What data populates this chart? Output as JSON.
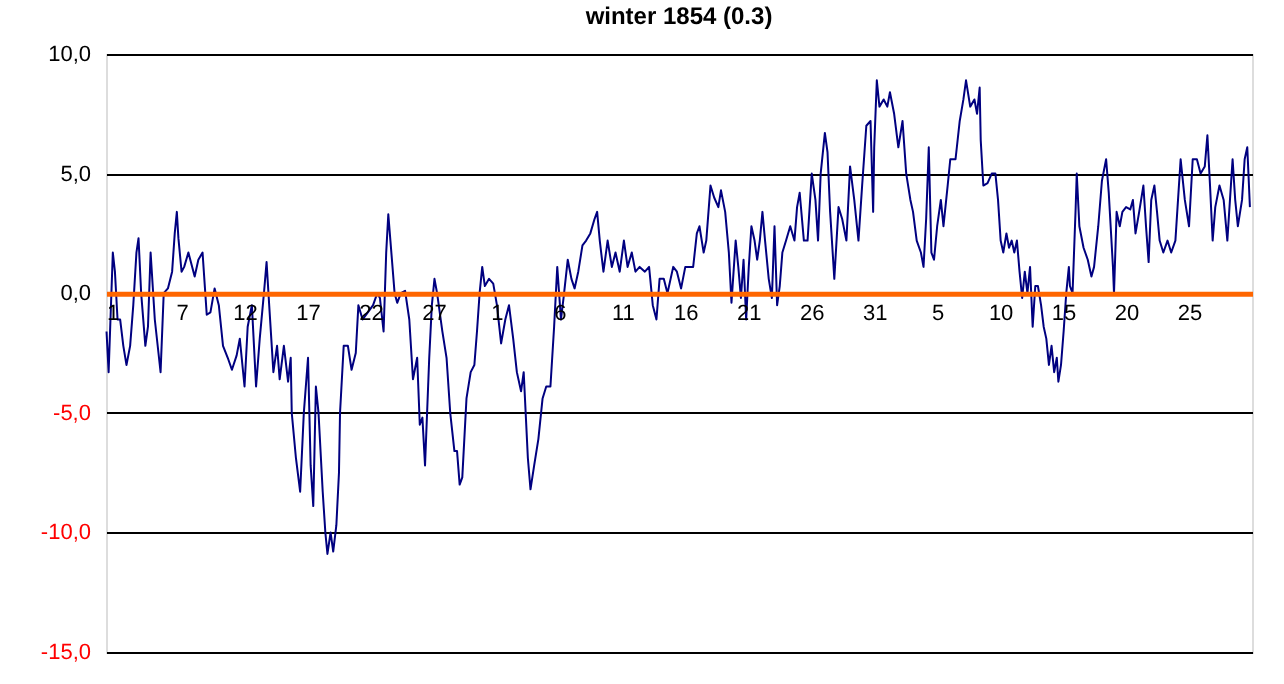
{
  "chart_data": {
    "type": "line",
    "title": "winter 1854 (0.3)",
    "series": [
      {
        "color": "#000080",
        "x": [
          "1853-12-01T01:00",
          "1853-12-01T05:00",
          "1853-12-01T13:00",
          "1853-12-01T17:00",
          "1853-12-01T22:00",
          "1853-12-02T03:00",
          "1853-12-02T09:00",
          "1853-12-02T15:00",
          "1853-12-02T22:00",
          "1853-12-03T04:00",
          "1853-12-03T10:00",
          "1853-12-03T14:00",
          "1853-12-03T19:00",
          "1853-12-04T03:00",
          "1853-12-04T08:00",
          "1853-12-04T13:00",
          "1853-12-04T21:00",
          "1853-12-05T04:00",
          "1853-12-05T08:00",
          "1853-12-05T14:00",
          "1853-12-05T22:00",
          "1853-12-06T06:00",
          "1853-12-06T11:00",
          "1853-12-06T15:00",
          "1853-12-06T18:00",
          "1853-12-07T00:00",
          "1853-12-07T05:00",
          "1853-12-07T13:00",
          "1853-12-08T01:00",
          "1853-12-08T08:00",
          "1853-12-08T16:00",
          "1853-12-09T00:00",
          "1853-12-09T07:00",
          "1853-12-09T15:00",
          "1853-12-09T23:00",
          "1853-12-10T07:00",
          "1853-12-10T16:00",
          "1853-12-11T00:00",
          "1853-12-11T09:00",
          "1853-12-11T15:00",
          "1853-12-12T00:00",
          "1853-12-12T06:00",
          "1853-12-12T14:00",
          "1853-12-12T22:00",
          "1853-12-13T05:00",
          "1853-12-13T13:00",
          "1853-12-13T18:00",
          "1853-12-13T23:00",
          "1853-12-14T07:00",
          "1853-12-14T14:00",
          "1853-12-14T19:00",
          "1853-12-15T03:00",
          "1853-12-15T11:00",
          "1853-12-15T16:00",
          "1853-12-15T18:00",
          "1853-12-16T02:00",
          "1853-12-16T10:00",
          "1853-12-16T17:00",
          "1853-12-17T01:00",
          "1853-12-17T06:00",
          "1853-12-17T11:00",
          "1853-12-17T16:00",
          "1853-12-17T21:00",
          "1853-12-18T05:00",
          "1853-12-18T10:00",
          "1853-12-18T14:00",
          "1853-12-18T20:00",
          "1853-12-19T01:00",
          "1853-12-19T07:00",
          "1853-12-19T12:00",
          "1853-12-19T14:00",
          "1853-12-19T21:00",
          "1853-12-20T05:00",
          "1853-12-20T12:00",
          "1853-12-20T20:00",
          "1853-12-21T01:00",
          "1853-12-21T09:00",
          "1853-12-21T19:00",
          "1853-12-22T05:00",
          "1853-12-22T13:00",
          "1853-12-22T18:00",
          "1853-12-23T01:00",
          "1853-12-23T06:00",
          "1853-12-23T10:00",
          "1853-12-23T14:00",
          "1853-12-23T22:00",
          "1853-12-24T03:00",
          "1853-12-24T10:00",
          "1853-12-24T18:00",
          "1853-12-25T02:00",
          "1853-12-25T09:00",
          "1853-12-25T17:00",
          "1853-12-25T22:00",
          "1853-12-26T03:00",
          "1853-12-26T08:00",
          "1853-12-26T16:00",
          "1853-12-26T21:00",
          "1853-12-27T02:00",
          "1853-12-27T07:00",
          "1853-12-27T17:00",
          "1853-12-28T01:00",
          "1853-12-28T08:00",
          "1853-12-28T16:00",
          "1853-12-28T21:00",
          "1853-12-29T02:00",
          "1853-12-29T07:00",
          "1853-12-29T15:00",
          "1853-12-29T23:00",
          "1853-12-30T06:00",
          "1853-12-30T11:00",
          "1853-12-30T16:00",
          "1853-12-30T21:00",
          "1853-12-31T02:00",
          "1853-12-31T10:00",
          "1853-12-31T18:00",
          "1854-01-01T01:00",
          "1854-01-01T09:00",
          "1854-01-01T17:00",
          "1854-01-02T00:00",
          "1854-01-02T08:00",
          "1854-01-02T15:00",
          "1854-01-02T23:00",
          "1854-01-03T04:00",
          "1854-01-03T12:00",
          "1854-01-03T17:00",
          "1854-01-04T00:00",
          "1854-01-04T08:00",
          "1854-01-04T16:00",
          "1854-01-04T23:00",
          "1854-01-05T07:00",
          "1854-01-05T14:00",
          "1854-01-05T20:00",
          "1854-01-06T03:00",
          "1854-01-06T08:00",
          "1854-01-06T16:00",
          "1854-01-06T23:00",
          "1854-01-07T05:00",
          "1854-01-07T12:00",
          "1854-01-07T20:00",
          "1854-01-08T03:00",
          "1854-01-08T11:00",
          "1854-01-08T19:00",
          "1854-01-09T00:00",
          "1854-01-09T05:00",
          "1854-01-09T12:00",
          "1854-01-09T20:00",
          "1854-01-10T04:00",
          "1854-01-10T11:00",
          "1854-01-10T19:00",
          "1854-01-11T03:00",
          "1854-01-11T10:00",
          "1854-01-11T18:00",
          "1854-01-12T01:00",
          "1854-01-12T09:00",
          "1854-01-12T19:00",
          "1854-01-13T03:00",
          "1854-01-13T10:00",
          "1854-01-13T17:00",
          "1854-01-13T23:00",
          "1854-01-14T07:00",
          "1854-01-14T14:00",
          "1854-01-15T01:00",
          "1854-01-15T08:00",
          "1854-01-15T16:00",
          "1854-01-16T00:00",
          "1854-01-16T07:00",
          "1854-01-16T15:00",
          "1854-01-16T22:00",
          "1854-01-17T03:00",
          "1854-01-17T11:00",
          "1854-01-17T16:00",
          "1854-01-18T00:00",
          "1854-01-18T07:00",
          "1854-01-18T15:00",
          "1854-01-18T20:00",
          "1854-01-19T04:00",
          "1854-01-19T11:00",
          "1854-01-19T16:00",
          "1854-01-20T00:00",
          "1854-01-20T05:00",
          "1854-01-20T10:00",
          "1854-01-20T15:00",
          "1854-01-20T20:00",
          "1854-01-21T01:00",
          "1854-01-21T06:00",
          "1854-01-21T12:00",
          "1854-01-21T17:00",
          "1854-01-21T22:00",
          "1854-01-22T03:00",
          "1854-01-22T08:00",
          "1854-01-22T15:00",
          "1854-01-22T21:00",
          "1854-01-23T02:00",
          "1854-01-23T07:00",
          "1854-01-23T12:00",
          "1854-01-23T17:00",
          "1854-01-24T00:00",
          "1854-01-24T08:00",
          "1854-01-24T16:00",
          "1854-01-24T21:00",
          "1854-01-25T02:00",
          "1854-01-25T10:00",
          "1854-01-25T17:00",
          "1854-01-26T01:00",
          "1854-01-26T08:00",
          "1854-01-26T13:00",
          "1854-01-26T18:00",
          "1854-01-27T02:00",
          "1854-01-27T07:00",
          "1854-01-27T12:00",
          "1854-01-27T20:00",
          "1854-01-28T04:00",
          "1854-01-28T11:00",
          "1854-01-28T19:00",
          "1854-01-29T02:00",
          "1854-01-29T10:00",
          "1854-01-29T18:00",
          "1854-01-30T01:00",
          "1854-01-30T09:00",
          "1854-01-30T17:00",
          "1854-01-30T22:00",
          "1854-01-31T00:00",
          "1854-01-31T05:00",
          "1854-01-31T10:00",
          "1854-01-31T18:00",
          "1854-02-01T01:00",
          "1854-02-01T06:00",
          "1854-02-01T14:00",
          "1854-02-01T22:00",
          "1854-02-02T06:00",
          "1854-02-02T13:00",
          "1854-02-02T21:00",
          "1854-02-03T02:00",
          "1854-02-03T09:00",
          "1854-02-03T17:00",
          "1854-02-03T22:00",
          "1854-02-04T03:00",
          "1854-02-04T08:00",
          "1854-02-04T13:00",
          "1854-02-04T18:00",
          "1854-02-05T00:00",
          "1854-02-05T07:00",
          "1854-02-05T12:00",
          "1854-02-05T20:00",
          "1854-02-06T01:00",
          "1854-02-06T11:00",
          "1854-02-06T19:00",
          "1854-02-07T02:00",
          "1854-02-07T07:00",
          "1854-02-07T15:00",
          "1854-02-07T23:00",
          "1854-02-08T04:00",
          "1854-02-08T09:00",
          "1854-02-08T11:00",
          "1854-02-08T16:00",
          "1854-02-09T00:00",
          "1854-02-09T08:00",
          "1854-02-09T15:00",
          "1854-02-09T20:00",
          "1854-02-10T01:00",
          "1854-02-10T06:00",
          "1854-02-10T12:00",
          "1854-02-10T17:00",
          "1854-02-10T22:00",
          "1854-02-11T03:00",
          "1854-02-11T08:00",
          "1854-02-11T13:00",
          "1854-02-11T18:00",
          "1854-02-11T23:00",
          "1854-02-12T04:00",
          "1854-02-12T09:00",
          "1854-02-12T14:00",
          "1854-02-12T19:00",
          "1854-02-13T00:00",
          "1854-02-13T06:00",
          "1854-02-13T11:00",
          "1854-02-13T16:00",
          "1854-02-13T21:00",
          "1854-02-14T02:00",
          "1854-02-14T07:00",
          "1854-02-14T12:00",
          "1854-02-14T15:00",
          "1854-02-14T20:00",
          "1854-02-15T01:00",
          "1854-02-15T06:00",
          "1854-02-15T11:00",
          "1854-02-15T13:00",
          "1854-02-15T18:00",
          "1854-02-16T00:00",
          "1854-02-16T02:00",
          "1854-02-16T07:00",
          "1854-02-16T15:00",
          "1854-02-16T23:00",
          "1854-02-17T06:00",
          "1854-02-17T11:00",
          "1854-02-17T19:00",
          "1854-02-18T02:00",
          "1854-02-18T10:00",
          "1854-02-18T15:00",
          "1854-02-18T23:00",
          "1854-02-19T01:00",
          "1854-02-19T06:00",
          "1854-02-19T12:00",
          "1854-02-19T17:00",
          "1854-02-20T00:00",
          "1854-02-20T08:00",
          "1854-02-20T13:00",
          "1854-02-20T18:00",
          "1854-02-21T01:00",
          "1854-02-21T09:00",
          "1854-02-21T14:00",
          "1854-02-21T19:00",
          "1854-02-22T00:00",
          "1854-02-22T06:00",
          "1854-02-22T11:00",
          "1854-02-22T16:00",
          "1854-02-22T23:00",
          "1854-02-23T07:00",
          "1854-02-23T14:00",
          "1854-02-23T22:00",
          "1854-02-24T03:00",
          "1854-02-24T08:00",
          "1854-02-24T16:00",
          "1854-02-25T00:00",
          "1854-02-25T07:00",
          "1854-02-25T15:00",
          "1854-02-25T22:00",
          "1854-02-26T06:00",
          "1854-02-26T11:00",
          "1854-02-26T16:00",
          "1854-02-26T21:00",
          "1854-02-27T02:00",
          "1854-02-27T10:00",
          "1854-02-27T18:00",
          "1854-02-28T01:00",
          "1854-02-28T06:00",
          "1854-02-28T11:00",
          "1854-02-28T16:00",
          "1854-02-28T21:00",
          "1854-03-01T05:00",
          "1854-03-01T10:00",
          "1854-03-01T15:00",
          "1854-03-01T20:00"
        ],
        "values": [
          -1.6,
          -3.3,
          1.7,
          0.9,
          -1.1,
          -1.1,
          -2.2,
          -3.0,
          -2.2,
          -0.5,
          1.7,
          2.3,
          0.0,
          -2.2,
          -1.4,
          1.7,
          -1.1,
          -2.5,
          -3.3,
          0.0,
          0.2,
          0.9,
          2.5,
          3.4,
          2.3,
          0.9,
          1.1,
          1.7,
          0.7,
          1.4,
          1.7,
          -0.9,
          -0.8,
          0.2,
          -0.5,
          -2.2,
          -2.7,
          -3.2,
          -2.6,
          -1.9,
          -3.9,
          -1.4,
          -0.5,
          -3.9,
          -1.9,
          0.0,
          1.3,
          -0.5,
          -3.3,
          -2.2,
          -3.6,
          -2.2,
          -3.7,
          -2.7,
          -5.0,
          -6.9,
          -8.3,
          -5.0,
          -2.7,
          -7.2,
          -8.9,
          -3.9,
          -5.0,
          -8.3,
          -10.0,
          -10.9,
          -10.0,
          -10.8,
          -9.7,
          -7.5,
          -5.0,
          -2.2,
          -2.2,
          -3.2,
          -2.5,
          -0.5,
          -1.1,
          -0.8,
          -0.5,
          0.0,
          -0.2,
          -1.6,
          1.7,
          3.3,
          2.2,
          0.0,
          -0.4,
          0.0,
          0.1,
          -1.1,
          -3.6,
          -2.7,
          -5.5,
          -5.2,
          -7.2,
          -2.7,
          -0.5,
          0.6,
          0.0,
          -1.6,
          -2.7,
          -5.0,
          -6.6,
          -6.6,
          -8.0,
          -7.7,
          -4.4,
          -3.3,
          -3.0,
          -1.6,
          0.0,
          1.1,
          0.3,
          0.6,
          0.4,
          -0.5,
          -2.1,
          -1.1,
          -0.5,
          -1.9,
          -3.3,
          -4.1,
          -3.3,
          -6.9,
          -8.2,
          -7.2,
          -6.1,
          -4.4,
          -3.9,
          -3.9,
          -1.4,
          1.1,
          -1.1,
          -0.2,
          1.4,
          0.6,
          0.2,
          0.9,
          2.0,
          2.2,
          2.5,
          3.1,
          3.4,
          2.2,
          0.9,
          2.2,
          1.1,
          1.7,
          0.9,
          2.2,
          1.1,
          1.7,
          0.9,
          1.1,
          0.9,
          1.1,
          -0.5,
          -1.1,
          0.6,
          0.6,
          0.0,
          1.1,
          0.9,
          0.2,
          1.1,
          1.1,
          1.1,
          2.5,
          2.8,
          1.7,
          2.2,
          4.5,
          4.0,
          3.6,
          4.3,
          3.4,
          1.7,
          -0.4,
          2.2,
          1.1,
          -0.2,
          1.4,
          -1.1,
          1.1,
          2.8,
          2.2,
          1.4,
          2.2,
          3.4,
          2.2,
          0.6,
          -0.2,
          2.8,
          -0.5,
          0.3,
          1.7,
          2.2,
          2.8,
          2.2,
          3.6,
          4.2,
          2.2,
          2.2,
          5.0,
          3.9,
          2.2,
          5.0,
          6.7,
          5.9,
          3.4,
          0.6,
          3.6,
          3.1,
          2.2,
          5.3,
          3.9,
          2.2,
          4.5,
          7.0,
          7.2,
          3.4,
          6.1,
          8.9,
          7.8,
          8.1,
          7.8,
          8.4,
          7.5,
          6.1,
          7.2,
          5.0,
          3.9,
          3.4,
          2.2,
          1.7,
          1.1,
          3.1,
          6.1,
          1.7,
          1.4,
          2.8,
          3.9,
          2.8,
          4.5,
          5.6,
          5.6,
          7.2,
          8.1,
          8.9,
          7.8,
          8.1,
          7.5,
          8.6,
          6.4,
          4.5,
          4.6,
          5.0,
          5.0,
          3.9,
          2.2,
          1.7,
          2.5,
          1.9,
          2.2,
          1.7,
          2.2,
          0.9,
          -0.2,
          0.9,
          0.0,
          1.1,
          -1.4,
          0.3,
          0.3,
          -0.5,
          -1.4,
          -1.9,
          -3.0,
          -2.2,
          -3.3,
          -2.7,
          -3.7,
          -3.0,
          -1.6,
          0.0,
          1.1,
          0.3,
          0.0,
          3.6,
          5.0,
          2.8,
          1.9,
          1.4,
          0.7,
          1.1,
          2.8,
          4.7,
          5.6,
          4.2,
          1.1,
          0.0,
          3.4,
          2.8,
          3.4,
          3.6,
          3.5,
          3.9,
          2.5,
          3.4,
          4.5,
          2.8,
          1.3,
          3.9,
          4.5,
          3.4,
          2.2,
          1.7,
          2.2,
          1.7,
          2.2,
          3.9,
          5.6,
          3.9,
          2.8,
          5.6,
          5.6,
          5.0,
          5.3,
          6.6,
          4.5,
          2.2,
          3.6,
          4.5,
          3.9,
          2.2,
          3.9,
          5.6,
          3.9,
          2.8,
          3.9,
          5.6,
          6.1,
          3.6
        ]
      }
    ],
    "xlim": [
      "1853-12-01",
      "1854-03-02"
    ],
    "xticks": [
      {
        "value": "1853-12-01",
        "label": "1"
      },
      {
        "value": "1853-12-07",
        "label": "7"
      },
      {
        "value": "1853-12-12",
        "label": "12"
      },
      {
        "value": "1853-12-17",
        "label": "17"
      },
      {
        "value": "1853-12-22",
        "label": "22"
      },
      {
        "value": "1853-12-27",
        "label": "27"
      },
      {
        "value": "1854-01-01",
        "label": "1"
      },
      {
        "value": "1854-01-06",
        "label": "6"
      },
      {
        "value": "1854-01-11",
        "label": "11"
      },
      {
        "value": "1854-01-16",
        "label": "16"
      },
      {
        "value": "1854-01-21",
        "label": "21"
      },
      {
        "value": "1854-01-26",
        "label": "26"
      },
      {
        "value": "1854-01-31",
        "label": "31"
      },
      {
        "value": "1854-02-05",
        "label": "5"
      },
      {
        "value": "1854-02-10",
        "label": "10"
      },
      {
        "value": "1854-02-15",
        "label": "15"
      },
      {
        "value": "1854-02-20",
        "label": "20"
      },
      {
        "value": "1854-02-25",
        "label": "25"
      }
    ],
    "ylim": [
      -15,
      10
    ],
    "yticks": [
      {
        "value": -15,
        "label": "-15,0"
      },
      {
        "value": -10,
        "label": "-10,0"
      },
      {
        "value": -5,
        "label": "-5,0"
      },
      {
        "value": 0,
        "label": "0,0"
      },
      {
        "value": 5,
        "label": "5,0"
      },
      {
        "value": 10,
        "label": "10,0"
      }
    ],
    "grid": "y"
  }
}
